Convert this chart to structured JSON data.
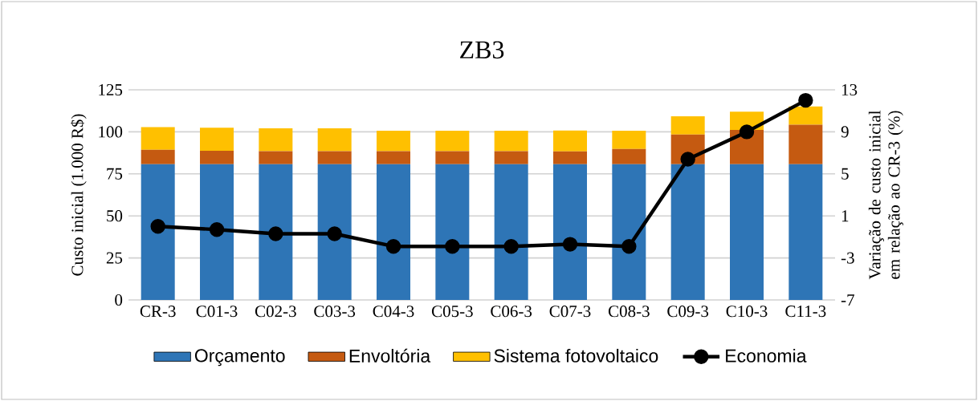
{
  "chart_data": {
    "type": "bar",
    "stacked": true,
    "title": "ZB3",
    "ylabel": "Custo inicial (1.000 R$)",
    "y2label": "Variação de custo inicial em relação ao CR-3 (%)",
    "categories": [
      "CR-3",
      "C01-3",
      "C02-3",
      "C03-3",
      "C04-3",
      "C05-3",
      "C06-3",
      "C07-3",
      "C08-3",
      "C09-3",
      "C10-3",
      "C11-3"
    ],
    "ylim": [
      0,
      125
    ],
    "yticks": [
      0,
      25,
      50,
      75,
      100,
      125
    ],
    "y2lim": [
      -7,
      13
    ],
    "y2ticks": [
      -7,
      -3,
      1,
      5,
      9,
      13
    ],
    "grid": "y",
    "legend": "bottom",
    "series": [
      {
        "name": "Orçamento",
        "color": "#2e75b6",
        "values": [
          80.8,
          80.8,
          80.8,
          80.8,
          80.8,
          80.8,
          80.8,
          80.8,
          80.8,
          80.8,
          80.8,
          80.8
        ]
      },
      {
        "name": "Envoltória",
        "color": "#c55a11",
        "values": [
          8.5,
          8.0,
          7.7,
          7.7,
          7.7,
          7.7,
          7.7,
          7.6,
          9.0,
          17.6,
          20.3,
          23.4
        ]
      },
      {
        "name": "Sistema fotovoltaico",
        "color": "#ffc000",
        "values": [
          13.5,
          13.6,
          13.6,
          13.6,
          12.2,
          12.2,
          12.2,
          12.4,
          10.9,
          10.9,
          10.9,
          10.9
        ]
      },
      {
        "name": "Economia",
        "type": "line",
        "axis": "y2",
        "color": "#000000",
        "marker": "circle",
        "values": [
          0.0,
          -0.3,
          -0.7,
          -0.7,
          -1.9,
          -1.9,
          -1.9,
          -1.7,
          -1.9,
          6.4,
          9.0,
          12.0
        ]
      }
    ]
  }
}
